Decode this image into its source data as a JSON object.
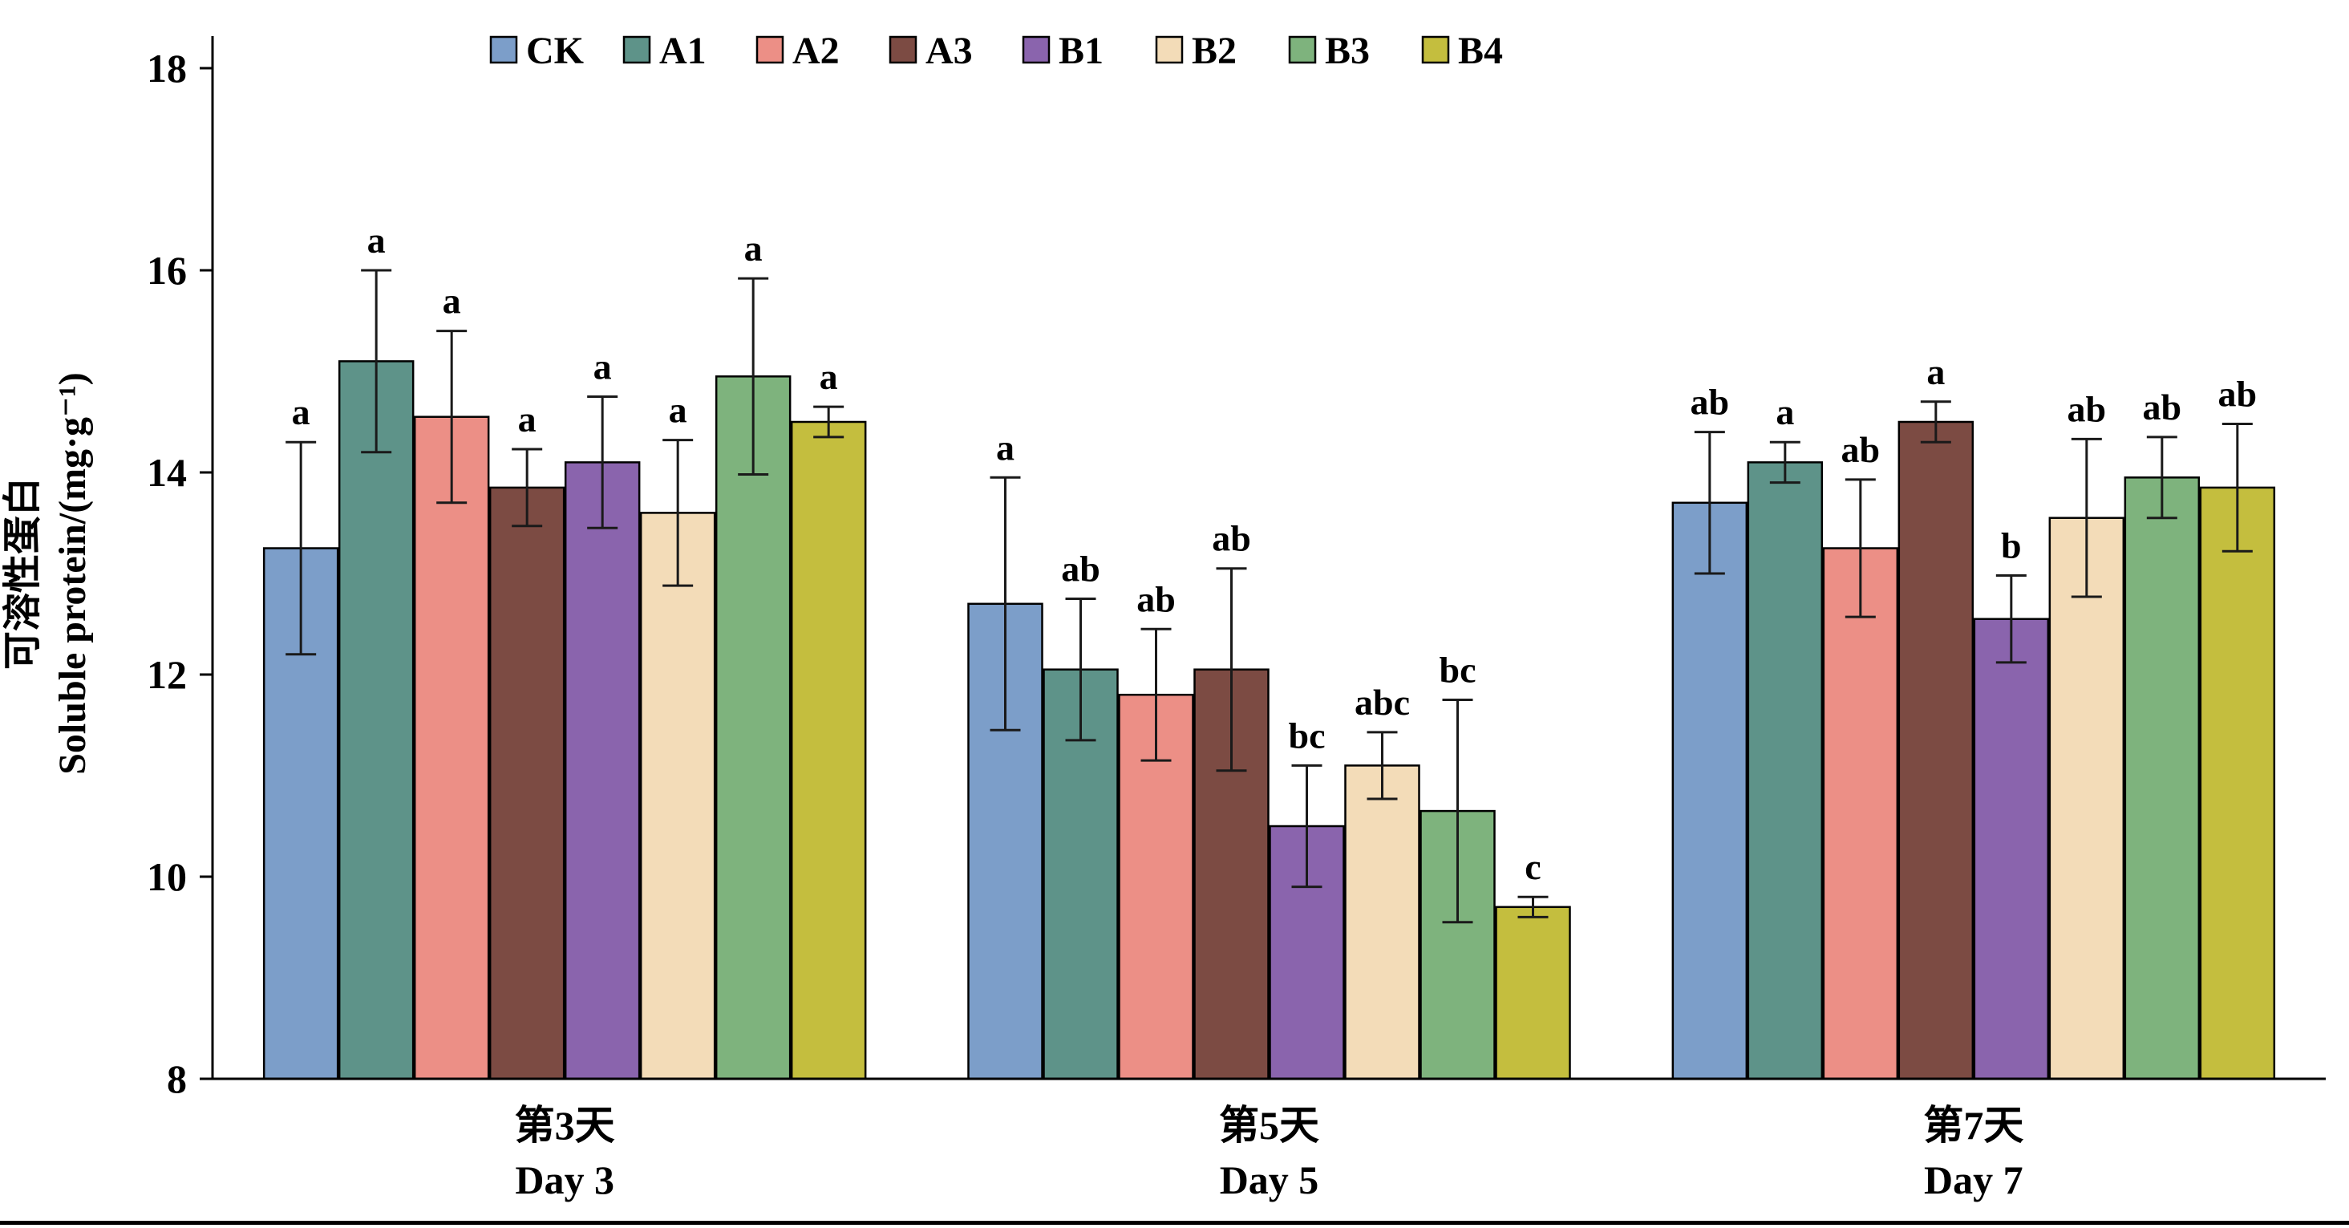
{
  "chart_data": {
    "type": "bar",
    "title": "",
    "ylabel_cn": "可溶性蛋白",
    "ylabel_en": "Soluble protein/(mg·g⁻¹)",
    "ylim": [
      8,
      18
    ],
    "yticks": [
      8,
      10,
      12,
      14,
      16,
      18
    ],
    "grid": false,
    "legend_position": "top",
    "axis_color": "#000000",
    "categories": [
      {
        "cn": "第3天",
        "en": "Day 3"
      },
      {
        "cn": "第5天",
        "en": "Day 5"
      },
      {
        "cn": "第7天",
        "en": "Day 7"
      }
    ],
    "series": [
      {
        "name": "CK",
        "color": "#7C9EC9",
        "values": [
          13.25,
          12.7,
          13.7
        ],
        "errors": [
          1.05,
          1.25,
          0.7
        ],
        "letters": [
          "a",
          "a",
          "ab"
        ]
      },
      {
        "name": "A1",
        "color": "#5E9389",
        "values": [
          15.1,
          12.05,
          14.1
        ],
        "errors": [
          0.9,
          0.7,
          0.2
        ],
        "letters": [
          "a",
          "ab",
          "a"
        ]
      },
      {
        "name": "A2",
        "color": "#EC8F86",
        "values": [
          14.55,
          11.8,
          13.25
        ],
        "errors": [
          0.85,
          0.65,
          0.68
        ],
        "letters": [
          "a",
          "ab",
          "ab"
        ]
      },
      {
        "name": "A3",
        "color": "#7C4B43",
        "values": [
          13.85,
          12.05,
          14.5
        ],
        "errors": [
          0.38,
          1.0,
          0.2
        ],
        "letters": [
          "a",
          "ab",
          "a"
        ]
      },
      {
        "name": "B1",
        "color": "#8A64AD",
        "values": [
          14.1,
          10.5,
          12.55
        ],
        "errors": [
          0.65,
          0.6,
          0.43
        ],
        "letters": [
          "a",
          "bc",
          "b"
        ]
      },
      {
        "name": "B2",
        "color": "#F3DCB8",
        "values": [
          13.6,
          11.1,
          13.55
        ],
        "errors": [
          0.72,
          0.33,
          0.78
        ],
        "letters": [
          "a",
          "abc",
          "ab"
        ]
      },
      {
        "name": "B3",
        "color": "#7EB37D",
        "values": [
          14.95,
          10.65,
          13.95
        ],
        "errors": [
          0.97,
          1.1,
          0.4
        ],
        "letters": [
          "a",
          "bc",
          "ab"
        ]
      },
      {
        "name": "B4",
        "color": "#C4BE3E",
        "values": [
          14.5,
          9.7,
          13.85
        ],
        "errors": [
          0.15,
          0.1,
          0.63
        ],
        "letters": [
          "a",
          "c",
          "ab"
        ]
      }
    ]
  }
}
